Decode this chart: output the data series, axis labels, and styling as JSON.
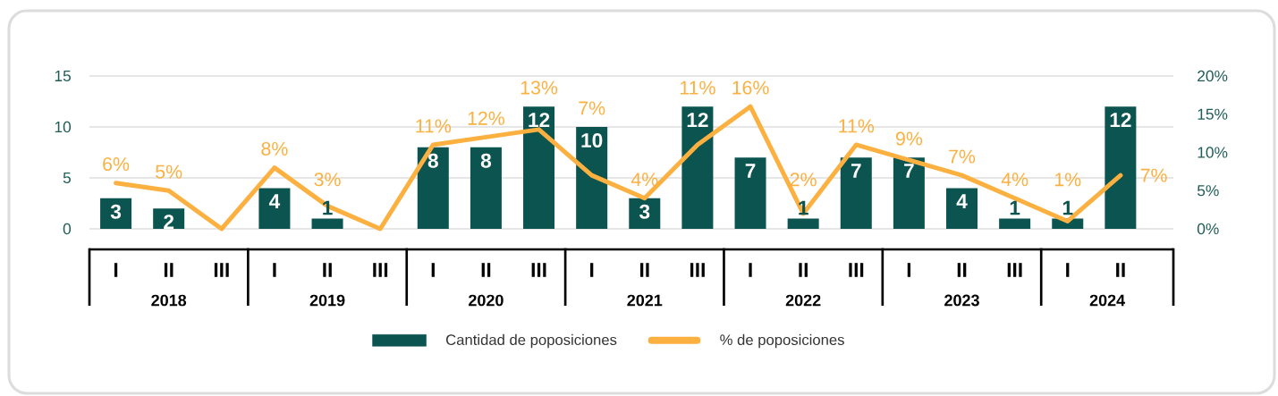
{
  "chart_data": {
    "type": "bar",
    "categories": [
      "I",
      "II",
      "III",
      "I",
      "II",
      "III",
      "I",
      "II",
      "III",
      "I",
      "II",
      "III",
      "I",
      "II",
      "III",
      "I",
      "II",
      "III",
      "I",
      "II"
    ],
    "annotations": [
      "2018",
      "2019",
      "2020",
      "2021",
      "2022",
      "2023",
      "2024"
    ],
    "series": [
      {
        "name": "Cantidad de poposiciones",
        "color": "#0b5450",
        "values": [
          3,
          2,
          null,
          4,
          1,
          null,
          8,
          8,
          12,
          10,
          3,
          12,
          7,
          1,
          7,
          7,
          4,
          1,
          1,
          12
        ],
        "value_labels": [
          "3",
          "2",
          null,
          "4",
          "1",
          null,
          "8",
          "8",
          "12",
          "10",
          "3",
          "12",
          "7",
          "1",
          "7",
          "7",
          "4",
          "1",
          "1",
          "12"
        ]
      },
      {
        "name": "% de poposiciones",
        "type": "line",
        "axis": "y2",
        "color": "#fbb040",
        "values": [
          6,
          5,
          0,
          8,
          3,
          0,
          11,
          12,
          13,
          7,
          4,
          11,
          16,
          2,
          11,
          9,
          7,
          4,
          1,
          7
        ],
        "value_labels": [
          "6%",
          "5%",
          null,
          "8%",
          "3%",
          null,
          "11%",
          "12%",
          "13%",
          "7%",
          "4%",
          "11%",
          "16%",
          "2%",
          "11%",
          "9%",
          "7%",
          "4%",
          "1%",
          "7%"
        ]
      }
    ],
    "ylim": [
      0,
      15
    ],
    "yticks": [
      0,
      5,
      10,
      15
    ],
    "y2lim": [
      0,
      20
    ],
    "y2ticks": [
      {
        "value": 0,
        "label": "0%"
      },
      {
        "value": 5,
        "label": "5%"
      },
      {
        "value": 10,
        "label": "10%"
      },
      {
        "value": 15,
        "label": "15%"
      },
      {
        "value": 20,
        "label": "20%"
      }
    ],
    "grid": "y",
    "legend": "bottom"
  }
}
